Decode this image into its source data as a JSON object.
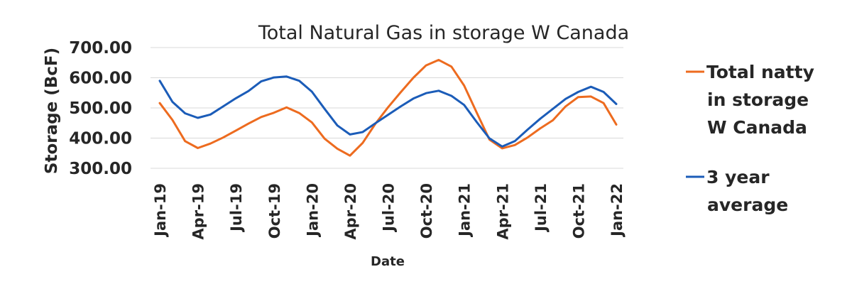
{
  "chart_data": {
    "type": "line",
    "title": "Total Natural Gas in storage W Canada",
    "xlabel": "Date",
    "ylabel": "Storage (BcF)",
    "ylim": [
      300,
      700
    ],
    "yticks": [
      "700.00",
      "600.00",
      "500.00",
      "400.00",
      "300.00"
    ],
    "ytick_values": [
      700,
      600,
      500,
      400,
      300
    ],
    "xticks": [
      "Jan-19",
      "Apr-19",
      "Jul-19",
      "Oct-19",
      "Jan-20",
      "Apr-20",
      "Jul-20",
      "Oct-20",
      "Jan-21",
      "Apr-21",
      "Jul-21",
      "Oct-21",
      "Jan-22"
    ],
    "grid": true,
    "legend_position": "right",
    "x": [
      "Jan-19",
      "Feb-19",
      "Mar-19",
      "Apr-19",
      "May-19",
      "Jun-19",
      "Jul-19",
      "Aug-19",
      "Sep-19",
      "Oct-19",
      "Nov-19",
      "Dec-19",
      "Jan-20",
      "Feb-20",
      "Mar-20",
      "Apr-20",
      "May-20",
      "Jun-20",
      "Jul-20",
      "Aug-20",
      "Sep-20",
      "Oct-20",
      "Nov-20",
      "Dec-20",
      "Jan-21",
      "Feb-21",
      "Mar-21",
      "Apr-21",
      "May-21",
      "Jun-21",
      "Jul-21",
      "Aug-21",
      "Sep-21",
      "Oct-21",
      "Nov-21",
      "Dec-21",
      "Jan-22"
    ],
    "series": [
      {
        "name": "Total natty in storage W Canada",
        "legend_lines": [
          "Total natty",
          "in storage",
          "W Canada"
        ],
        "color": "#ED6B1F",
        "values": [
          516,
          460,
          390,
          367,
          382,
          402,
          425,
          448,
          470,
          484,
          502,
          483,
          452,
          398,
          365,
          342,
          384,
          447,
          502,
          552,
          600,
          641,
          659,
          637,
          574,
          484,
          395,
          366,
          377,
          402,
          432,
          459,
          505,
          536,
          538,
          516,
          445
        ]
      },
      {
        "name": "3 year average",
        "legend_lines": [
          "3 year",
          "average"
        ],
        "color": "#1B5CB8",
        "values": [
          590,
          520,
          482,
          467,
          478,
          505,
          532,
          556,
          588,
          601,
          604,
          590,
          554,
          497,
          442,
          412,
          420,
          449,
          477,
          505,
          531,
          549,
          557,
          540,
          510,
          453,
          399,
          372,
          390,
          428,
          464,
          497,
          530,
          553,
          570,
          553,
          513
        ]
      }
    ]
  }
}
